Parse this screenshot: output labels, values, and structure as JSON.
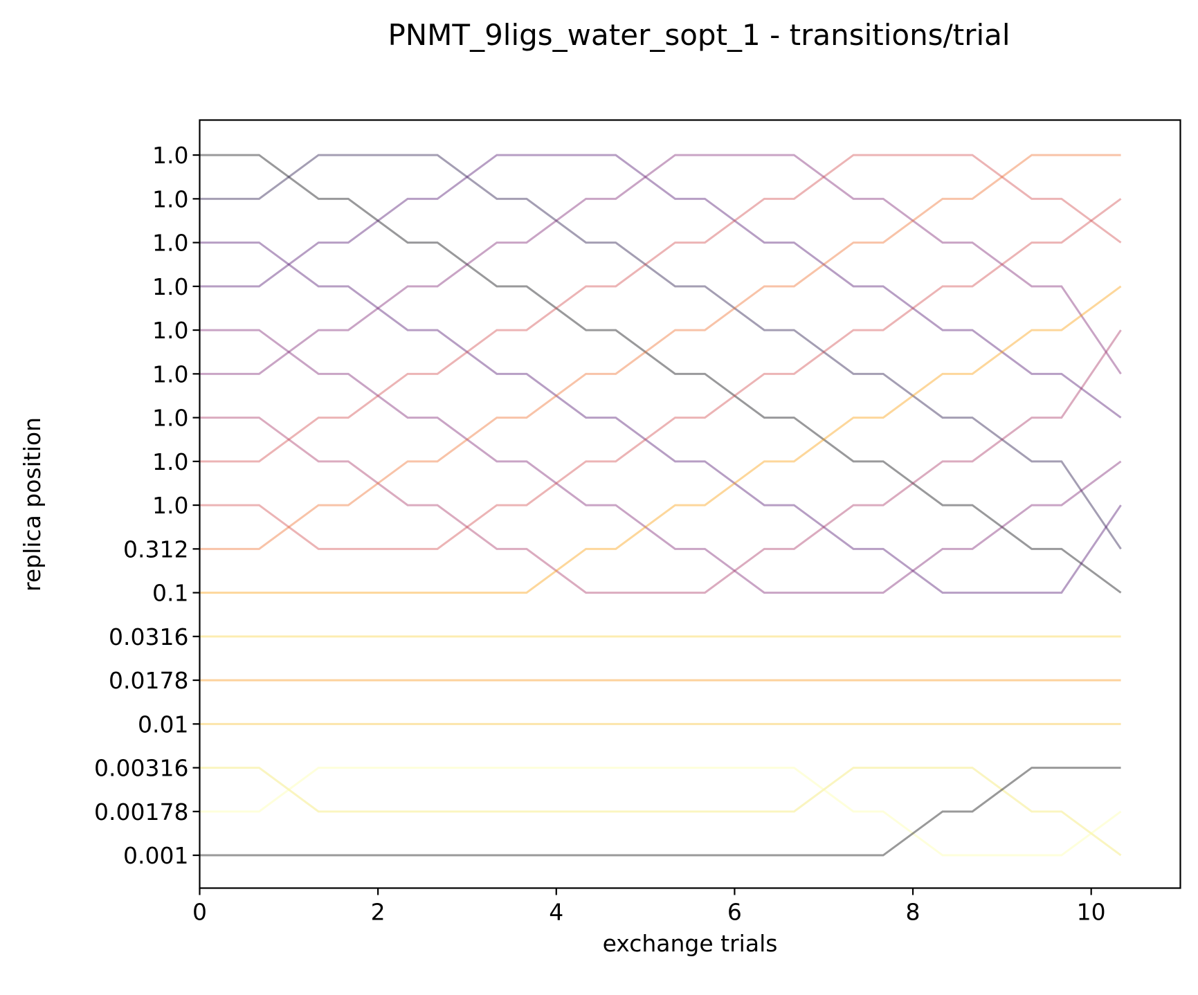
{
  "chart_data": {
    "type": "line",
    "title": "PNMT_9ligs_water_sopt_1 - transitions/trial",
    "xlabel": "exchange trials",
    "ylabel": "replica position",
    "xlim": [
      0,
      11
    ],
    "ylim": [
      -0.75,
      16.8
    ],
    "xticks": [
      0,
      2,
      4,
      6,
      8,
      10
    ],
    "xtick_labels": [
      "0",
      "2",
      "4",
      "6",
      "8",
      "10"
    ],
    "yticks": [
      0,
      1,
      2,
      3,
      4,
      5,
      6,
      7,
      8,
      9,
      10,
      11,
      12,
      13,
      14,
      15,
      16
    ],
    "ytick_labels": [
      "0.001",
      "0.00178",
      "0.00316",
      "0.01",
      "0.0178",
      "0.0316",
      "0.1",
      "0.312",
      "1.0",
      "1.0",
      "1.0",
      "1.0",
      "1.0",
      "1.0",
      "1.0",
      "1.0",
      "1.0"
    ],
    "grid": false,
    "legend": "none",
    "x": [
      0,
      0.667,
      1.333,
      1.667,
      2.333,
      2.667,
      3.333,
      3.667,
      4.333,
      4.667,
      5.333,
      5.667,
      6.333,
      6.667,
      7.333,
      7.667,
      8.333,
      8.667,
      9.333,
      9.667,
      10.333
    ],
    "series": [
      {
        "color": "#000004",
        "values": [
          16,
          16,
          15,
          15,
          14,
          14,
          13,
          13,
          12,
          12,
          11,
          11,
          10,
          10,
          9,
          9,
          8,
          8,
          7,
          7,
          6
        ]
      },
      {
        "color": "#1b0c41",
        "values": [
          15,
          15,
          16,
          16,
          16,
          16,
          15,
          15,
          14,
          14,
          13,
          13,
          12,
          12,
          11,
          11,
          10,
          10,
          9,
          9,
          7
        ]
      },
      {
        "color": "#4a0c6b",
        "values": [
          14,
          14,
          13,
          13,
          12,
          12,
          11,
          11,
          10,
          10,
          9,
          9,
          8,
          8,
          7,
          7,
          6,
          6,
          6,
          6,
          8
        ]
      },
      {
        "color": "#4a0c6b",
        "values": [
          13,
          13,
          14,
          14,
          15,
          15,
          16,
          16,
          16,
          16,
          15,
          15,
          14,
          14,
          13,
          13,
          12,
          12,
          11,
          11,
          10
        ]
      },
      {
        "color": "#781c6d",
        "values": [
          12,
          12,
          11,
          11,
          10,
          10,
          9,
          9,
          8,
          8,
          7,
          7,
          6,
          6,
          6,
          6,
          7,
          7,
          8,
          8,
          9
        ]
      },
      {
        "color": "#781c6d",
        "values": [
          11,
          11,
          12,
          12,
          13,
          13,
          14,
          14,
          15,
          15,
          16,
          16,
          16,
          16,
          15,
          15,
          14,
          14,
          13,
          13,
          11
        ]
      },
      {
        "color": "#a52c60",
        "values": [
          10,
          10,
          9,
          9,
          8,
          8,
          7,
          7,
          6,
          6,
          6,
          6,
          7,
          7,
          8,
          8,
          9,
          9,
          10,
          10,
          12
        ]
      },
      {
        "color": "#cf4446",
        "values": [
          8,
          8,
          7,
          7,
          7,
          7,
          8,
          8,
          9,
          9,
          10,
          10,
          11,
          11,
          12,
          12,
          13,
          13,
          14,
          14,
          15
        ]
      },
      {
        "color": "#cf4446",
        "values": [
          9,
          9,
          10,
          10,
          11,
          11,
          12,
          12,
          13,
          13,
          14,
          14,
          15,
          15,
          16,
          16,
          16,
          16,
          15,
          15,
          14
        ]
      },
      {
        "color": "#ed6925",
        "values": [
          7,
          7,
          8,
          8,
          9,
          9,
          10,
          10,
          11,
          11,
          12,
          12,
          13,
          13,
          14,
          14,
          15,
          15,
          16,
          16,
          16
        ]
      },
      {
        "color": "#fb9b06",
        "values": [
          6,
          6,
          6,
          6,
          6,
          6,
          6,
          6,
          7,
          7,
          8,
          8,
          9,
          9,
          10,
          10,
          11,
          11,
          12,
          12,
          13
        ]
      },
      {
        "color": "#f7d13d",
        "values": [
          5,
          5,
          5,
          5,
          5,
          5,
          5,
          5,
          5,
          5,
          5,
          5,
          5,
          5,
          5,
          5,
          5,
          5,
          5,
          5,
          5
        ]
      },
      {
        "color": "#f98e09",
        "values": [
          4,
          4,
          4,
          4,
          4,
          4,
          4,
          4,
          4,
          4,
          4,
          4,
          4,
          4,
          4,
          4,
          4,
          4,
          4,
          4,
          4
        ]
      },
      {
        "color": "#f8bd2c",
        "values": [
          3,
          3,
          3,
          3,
          3,
          3,
          3,
          3,
          3,
          3,
          3,
          3,
          3,
          3,
          3,
          3,
          3,
          3,
          3,
          3,
          3
        ]
      },
      {
        "color": "#f2e661",
        "values": [
          2,
          2,
          1,
          1,
          1,
          1,
          1,
          1,
          1,
          1,
          1,
          1,
          1,
          1,
          2,
          2,
          2,
          2,
          1,
          1,
          0
        ]
      },
      {
        "color": "#fcffa4",
        "values": [
          1,
          1,
          2,
          2,
          2,
          2,
          2,
          2,
          2,
          2,
          2,
          2,
          2,
          2,
          1,
          1,
          0,
          0,
          0,
          0,
          1
        ]
      },
      {
        "color": "#000000",
        "values": [
          0,
          0,
          0,
          0,
          0,
          0,
          0,
          0,
          0,
          0,
          0,
          0,
          0,
          0,
          0,
          0,
          1,
          1,
          2,
          2,
          2
        ]
      }
    ],
    "series_opacity": 0.4
  }
}
